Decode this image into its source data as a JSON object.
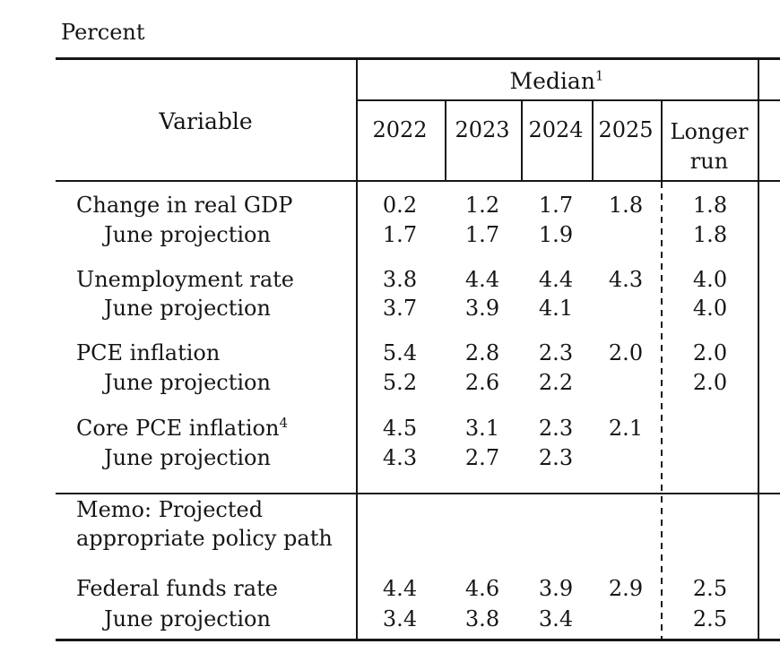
{
  "page": {
    "unit_label": "Percent"
  },
  "colors": {
    "ink": "#161616",
    "background": "#ffffff"
  },
  "table": {
    "variable_header": "Variable",
    "median_group": {
      "label": "Median",
      "sup": "1"
    },
    "years": [
      "2022",
      "2023",
      "2024",
      "2025"
    ],
    "longer_run": {
      "line1": "Longer",
      "line2": "run"
    },
    "rows": [
      {
        "label": "Change in real GDP",
        "label_sup": "",
        "values": [
          "0.2",
          "1.2",
          "1.7",
          "1.8",
          "1.8"
        ]
      },
      {
        "label": "June projection",
        "label_sup": "",
        "values": [
          "1.7",
          "1.7",
          "1.9",
          "",
          "1.8"
        ]
      },
      {
        "label": "Unemployment rate",
        "label_sup": "",
        "values": [
          "3.8",
          "4.4",
          "4.4",
          "4.3",
          "4.0"
        ]
      },
      {
        "label": "June projection",
        "label_sup": "",
        "values": [
          "3.7",
          "3.9",
          "4.1",
          "",
          "4.0"
        ]
      },
      {
        "label": "PCE inflation",
        "label_sup": "",
        "values": [
          "5.4",
          "2.8",
          "2.3",
          "2.0",
          "2.0"
        ]
      },
      {
        "label": "June projection",
        "label_sup": "",
        "values": [
          "5.2",
          "2.6",
          "2.2",
          "",
          "2.0"
        ]
      },
      {
        "label": "Core PCE inflation",
        "label_sup": "4",
        "values": [
          "4.5",
          "3.1",
          "2.3",
          "2.1",
          ""
        ]
      },
      {
        "label": "June projection",
        "label_sup": "",
        "values": [
          "4.3",
          "2.7",
          "2.3",
          "",
          ""
        ]
      },
      {
        "label": "Memo: Projected appropriate policy path",
        "label_sup": "",
        "values": [
          "",
          "",
          "",
          "",
          ""
        ]
      },
      {
        "label": "Federal funds rate",
        "label_sup": "",
        "values": [
          "4.4",
          "4.6",
          "3.9",
          "2.9",
          "2.5"
        ]
      },
      {
        "label": "June projection",
        "label_sup": "",
        "values": [
          "3.4",
          "3.8",
          "3.4",
          "",
          "2.5"
        ]
      }
    ]
  }
}
